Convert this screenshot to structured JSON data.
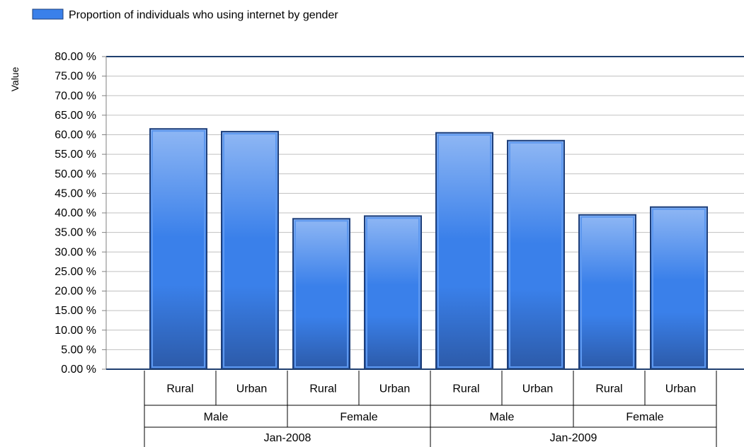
{
  "chart_data": {
    "type": "bar",
    "legend": {
      "label": "Proportion of individuals who using internet by gender",
      "color": "#3a80ea",
      "position": "top-left"
    },
    "ylabel": "Value",
    "ylim": [
      0,
      80
    ],
    "ytick_step": 5,
    "tick_format_suffix": " %",
    "grid": true,
    "categories": [
      "Rural",
      "Urban",
      "Rural",
      "Urban",
      "Rural",
      "Urban",
      "Rural",
      "Urban"
    ],
    "values": [
      61.5,
      60.8,
      38.5,
      39.2,
      60.5,
      58.5,
      39.5,
      41.5
    ],
    "group_level_1": [
      {
        "label": "Male",
        "span": 2
      },
      {
        "label": "Female",
        "span": 2
      },
      {
        "label": "Male",
        "span": 2
      },
      {
        "label": "Female",
        "span": 2
      }
    ],
    "group_level_2": [
      {
        "label": "Jan-2008",
        "span": 4
      },
      {
        "label": "Jan-2009",
        "span": 4
      }
    ]
  }
}
